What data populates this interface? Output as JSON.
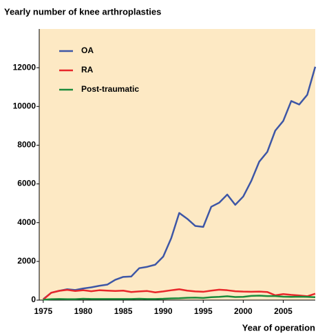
{
  "chart_data": {
    "type": "line",
    "title": "Yearly number of knee arthroplasties",
    "x_label": "Year of operation",
    "x": [
      1975,
      1976,
      1977,
      1978,
      1979,
      1980,
      1981,
      1982,
      1983,
      1984,
      1985,
      1986,
      1987,
      1988,
      1989,
      1990,
      1991,
      1992,
      1993,
      1994,
      1995,
      1996,
      1997,
      1998,
      1999,
      2000,
      2001,
      2002,
      2003,
      2004,
      2005,
      2006,
      2007,
      2008,
      2009
    ],
    "series": [
      {
        "name": "OA",
        "color": "#3d56a6",
        "values": [
          50,
          380,
          480,
          560,
          520,
          600,
          660,
          740,
          800,
          1050,
          1200,
          1220,
          1650,
          1720,
          1830,
          2250,
          3200,
          4500,
          4200,
          3830,
          3780,
          4820,
          5030,
          5450,
          4920,
          5350,
          6150,
          7150,
          7650,
          8750,
          9250,
          10280,
          10100,
          10600,
          12050
        ]
      },
      {
        "name": "RA",
        "color": "#e8262a",
        "values": [
          30,
          380,
          480,
          530,
          470,
          510,
          460,
          510,
          490,
          470,
          490,
          420,
          450,
          470,
          400,
          450,
          510,
          560,
          490,
          450,
          430,
          490,
          540,
          510,
          460,
          440,
          430,
          440,
          420,
          250,
          310,
          270,
          240,
          200,
          330
        ]
      },
      {
        "name": "Post-traumatic",
        "color": "#1a8a3a",
        "values": [
          20,
          50,
          60,
          50,
          50,
          70,
          60,
          60,
          60,
          60,
          60,
          60,
          70,
          60,
          60,
          70,
          90,
          100,
          120,
          130,
          110,
          150,
          170,
          200,
          160,
          170,
          220,
          230,
          210,
          210,
          180,
          170,
          180,
          170,
          150
        ]
      }
    ],
    "xlim": [
      1974.5,
      2009
    ],
    "xticks": [
      1975,
      1980,
      1985,
      1990,
      1995,
      2000,
      2005
    ],
    "ylim": [
      0,
      14000
    ],
    "yticks": [
      0,
      2000,
      4000,
      6000,
      8000,
      10000,
      12000
    ],
    "background": "#fde9c4",
    "legend": "upper left",
    "grid": false
  }
}
